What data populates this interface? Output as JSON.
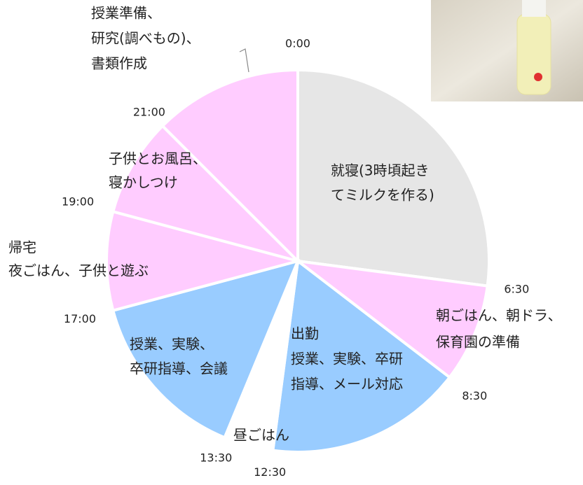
{
  "chart_data": {
    "type": "pie",
    "categories": [
      [
        "就寝(3時頃起き",
        "てミルクを作る)"
      ],
      [
        "朝ごはん、朝ドラ、",
        "保育園の準備"
      ],
      [
        "出勤",
        "授業、実験、卒研",
        "指導、メール対応"
      ],
      [
        "昼ごはん"
      ],
      [
        "授業、実験、",
        "卒研指導、会議"
      ],
      [
        "帰宅",
        "夜ごはん、子供と遊ぶ"
      ],
      [
        "子供とお風呂、",
        "寝かしつけ"
      ],
      [
        "授業準備、",
        "研究(調べもの)、",
        "書類作成"
      ]
    ],
    "values": [
      6.5,
      2,
      4,
      1,
      3.5,
      2,
      2,
      3
    ],
    "colors": [
      "#e6e6e6",
      "#ffccff",
      "#99ccff",
      "#ffffff",
      "#99ccff",
      "#ffccff",
      "#ffccff",
      "#ffccff"
    ],
    "time_labels": [
      "0:00",
      "6:30",
      "8:30",
      "12:30",
      "13:30",
      "17:00",
      "19:00",
      "21:00"
    ]
  }
}
